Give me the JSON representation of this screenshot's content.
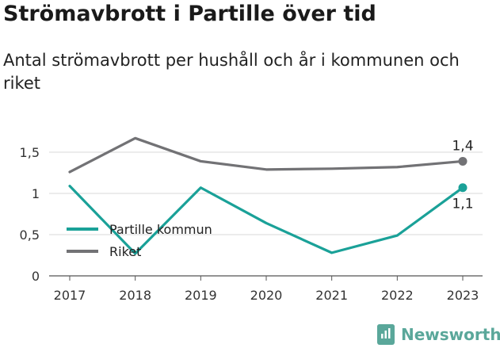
{
  "title": "Strömavbrott i Partille över tid",
  "subtitle": "Antal strömavbrott per hushåll och år i kommunen och riket",
  "brand": "Newsworthy",
  "colors": {
    "partille": "#1aa198",
    "riket": "#727275",
    "grid": "#d9d9d9"
  },
  "chart_data": {
    "type": "line",
    "x": [
      "2017",
      "2018",
      "2019",
      "2020",
      "2021",
      "2022",
      "2023"
    ],
    "yticks": [
      "0",
      "0,5",
      "1",
      "1,5"
    ],
    "ylim": [
      0,
      1.75
    ],
    "grid": true,
    "legend_position": "bottom-left",
    "series": [
      {
        "name": "Partille kommun",
        "values": [
          1.09,
          0.27,
          1.07,
          0.64,
          0.28,
          0.49,
          1.07
        ],
        "end_label": "1,1"
      },
      {
        "name": "Riket",
        "values": [
          1.26,
          1.67,
          1.39,
          1.29,
          1.3,
          1.32,
          1.39
        ],
        "end_label": "1,4"
      }
    ]
  }
}
